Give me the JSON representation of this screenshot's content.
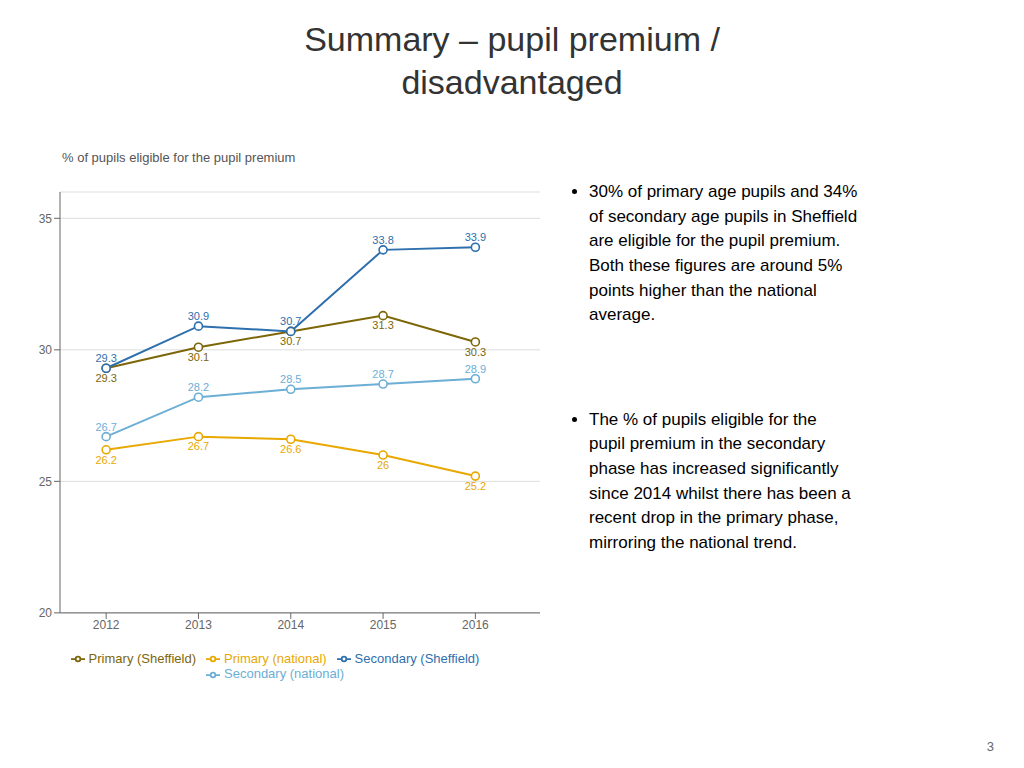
{
  "chart_data": {
    "type": "line",
    "title": "Summary – pupil premium /\ndisadvantaged",
    "subtitle": "% of pupils eligible for the pupil premium",
    "annotations": [
      "30% of primary age pupils and 34%\nof secondary age pupils in Sheffield\nare eligible for the pupil premium.\nBoth these figures are around 5%\npoints higher than the national\naverage.",
      "The % of pupils eligible for the\npupil premium in the secondary\nphase has increased significantly\nsince 2014 whilst there has been a\nrecent drop in the primary phase,\nmirroring the national trend.",
      "3"
    ],
    "x": [
      2012,
      2013,
      2014,
      2015,
      2016
    ],
    "xlim": [
      2011.5,
      2016.7
    ],
    "xticks": [
      2012,
      2013,
      2014,
      2015,
      2016
    ],
    "ylim": [
      20,
      36
    ],
    "yticks": [
      20,
      25,
      30,
      35
    ],
    "grid": true,
    "legend": "bottom",
    "data_labels": true,
    "marker": "circle",
    "series": [
      {
        "name": "Primary (Sheffield)",
        "color": "#7d6608",
        "values": [
          29.3,
          30.1,
          30.7,
          31.3,
          30.3
        ]
      },
      {
        "name": "Primary (national)",
        "color": "#e8a800",
        "values": [
          26.2,
          26.7,
          26.6,
          26.0,
          25.2
        ]
      },
      {
        "name": "Secondary (Sheffield)",
        "color": "#2e6fad",
        "values": [
          29.3,
          30.9,
          30.7,
          33.8,
          33.9
        ]
      },
      {
        "name": "Secondary (national)",
        "color": "#6baed6",
        "values": [
          26.7,
          28.2,
          28.5,
          28.7,
          28.9
        ]
      }
    ]
  }
}
